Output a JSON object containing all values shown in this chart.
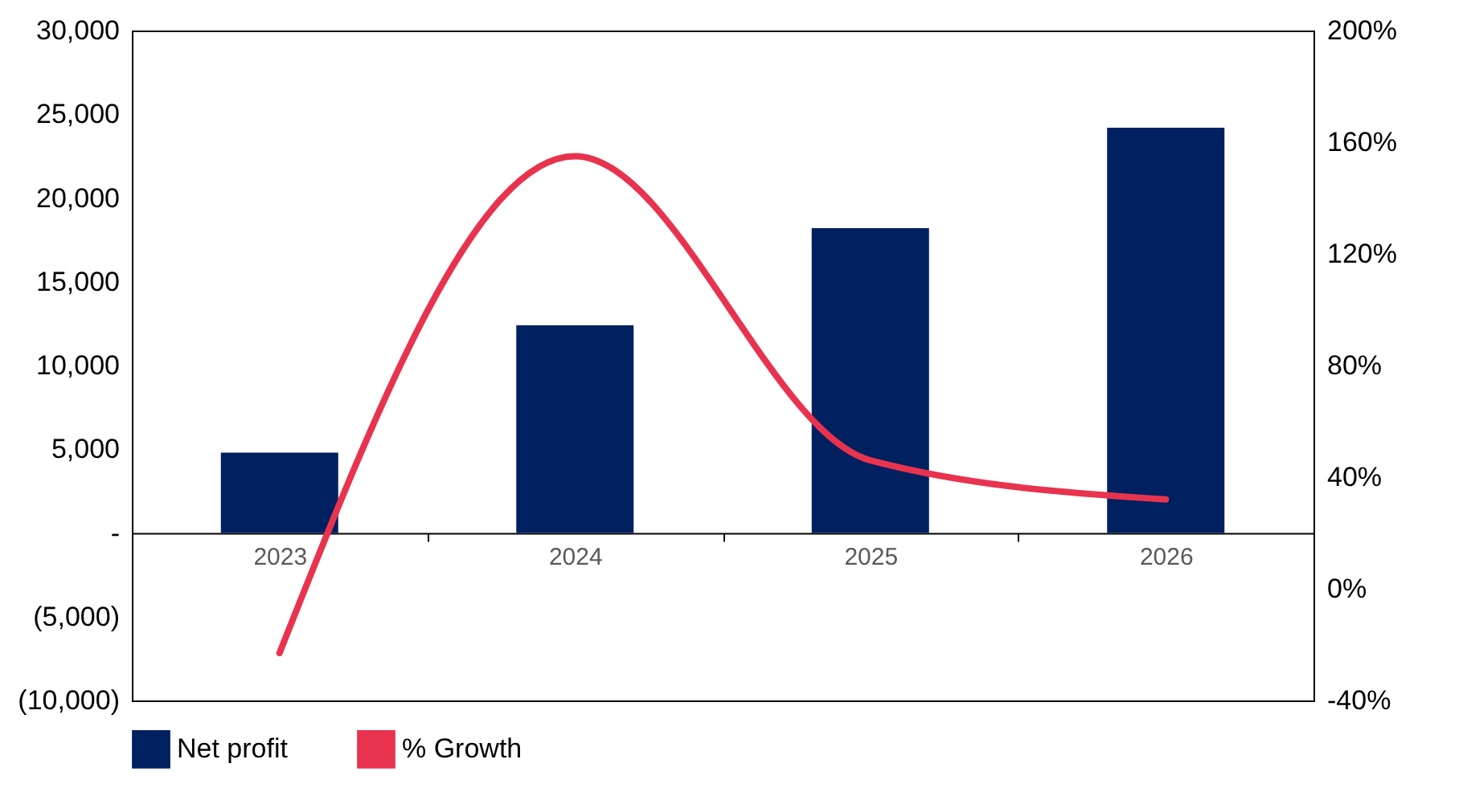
{
  "chart_data": {
    "type": "bar",
    "categories": [
      "2023",
      "2024",
      "2025",
      "2026"
    ],
    "series": [
      {
        "name": "Net profit",
        "color": "#002060",
        "values": [
          4800,
          12400,
          18200,
          24200
        ]
      },
      {
        "name": "% Growth",
        "type": "line",
        "axis": "y2",
        "color": "#e8334f",
        "values": [
          -23,
          155,
          46,
          32
        ]
      }
    ],
    "ylim": [
      -10000,
      30000
    ],
    "yticks": [
      {
        "value": 30000,
        "label": "30,000"
      },
      {
        "value": 25000,
        "label": "25,000"
      },
      {
        "value": 20000,
        "label": "20,000"
      },
      {
        "value": 15000,
        "label": "15,000"
      },
      {
        "value": 10000,
        "label": "10,000"
      },
      {
        "value": 5000,
        "label": "5,000"
      },
      {
        "value": 0,
        "label": "-"
      },
      {
        "value": -5000,
        "label": "(5,000)"
      },
      {
        "value": -10000,
        "label": "(10,000)"
      }
    ],
    "y2lim": [
      -40,
      200
    ],
    "y2ticks": [
      {
        "value": 200,
        "label": "200%"
      },
      {
        "value": 160,
        "label": "160%"
      },
      {
        "value": 120,
        "label": "120%"
      },
      {
        "value": 80,
        "label": "80%"
      },
      {
        "value": 40,
        "label": "40%"
      },
      {
        "value": 0,
        "label": "0%"
      },
      {
        "value": -40,
        "label": "-40%"
      }
    ],
    "legend": "bottom",
    "grid": false
  }
}
